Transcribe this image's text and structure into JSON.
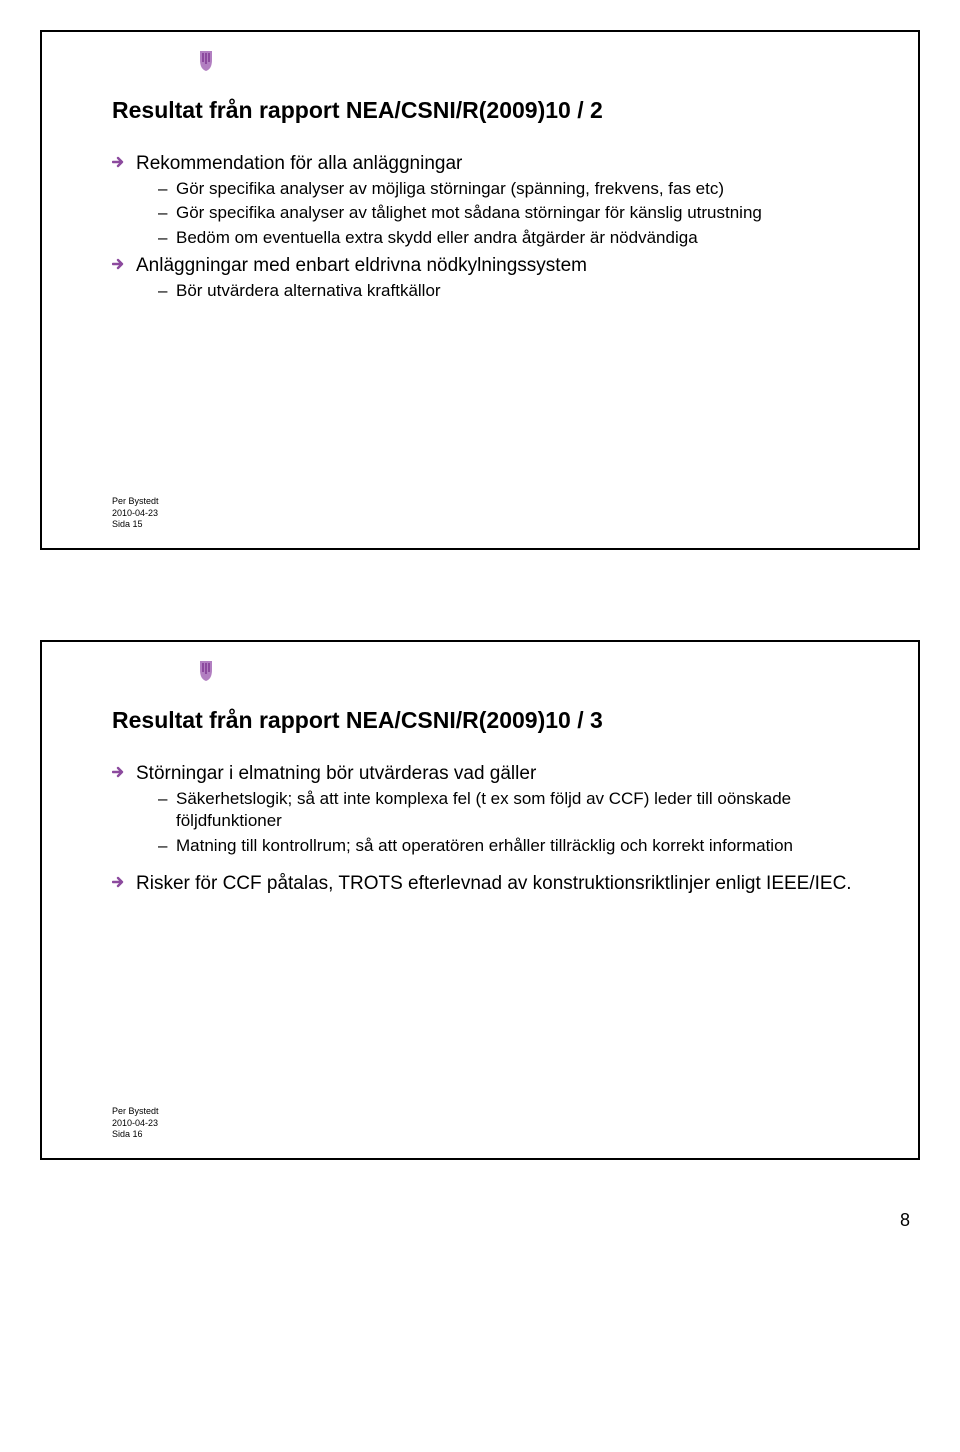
{
  "colors": {
    "accent": "#8c4a9e",
    "accent_light": "#b27fc1",
    "text": "#000000",
    "background": "#ffffff",
    "border": "#000000"
  },
  "page_number": "8",
  "slides": [
    {
      "title": "Resultat från rapport NEA/CSNI/R(2009)10 / 2",
      "footer": {
        "author": "Per Bystedt",
        "date": "2010-04-23",
        "page": "Sida 15"
      },
      "bullets": [
        {
          "text": "Rekommendation för alla anläggningar",
          "spacer_before": false,
          "sub": [
            "Gör specifika analyser av möjliga störningar (spänning, frekvens, fas etc)",
            "Gör specifika analyser av tålighet mot sådana störningar för känslig utrustning",
            "Bedöm om eventuella extra skydd eller andra åtgärder är nödvändiga"
          ]
        },
        {
          "text": "Anläggningar med enbart eldrivna nödkylningssystem",
          "spacer_before": false,
          "sub": [
            "Bör utvärdera alternativa kraftkällor"
          ]
        }
      ]
    },
    {
      "title": "Resultat från rapport NEA/CSNI/R(2009)10 / 3",
      "footer": {
        "author": "Per Bystedt",
        "date": "2010-04-23",
        "page": "Sida 16"
      },
      "bullets": [
        {
          "text": "Störningar i elmatning bör utvärderas vad gäller",
          "spacer_before": false,
          "sub": [
            "Säkerhetslogik; så att inte komplexa fel (t ex som följd av CCF) leder till oönskade följdfunktioner",
            "Matning till kontrollrum; så att operatören erhåller tillräcklig och korrekt information"
          ]
        },
        {
          "text": "Risker för CCF påtalas, TROTS efterlevnad av konstruktionsriktlinjer enligt IEEE/IEC.",
          "spacer_before": true,
          "sub": []
        }
      ]
    }
  ]
}
